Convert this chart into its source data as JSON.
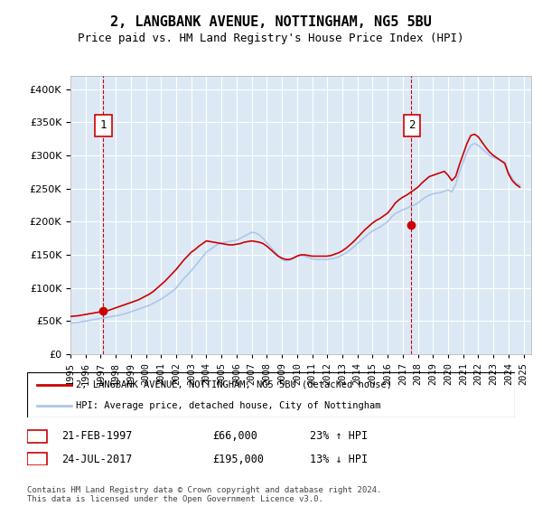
{
  "title": "2, LANGBANK AVENUE, NOTTINGHAM, NG5 5BU",
  "subtitle": "Price paid vs. HM Land Registry's House Price Index (HPI)",
  "legend_line1": "2, LANGBANK AVENUE, NOTTINGHAM, NG5 5BU (detached house)",
  "legend_line2": "HPI: Average price, detached house, City of Nottingham",
  "sale1_label": "1",
  "sale1_date": "21-FEB-1997",
  "sale1_price": "£66,000",
  "sale1_hpi": "23% ↑ HPI",
  "sale1_year": 1997.13,
  "sale1_value": 66000,
  "sale2_label": "2",
  "sale2_date": "24-JUL-2017",
  "sale2_price": "£195,000",
  "sale2_hpi": "13% ↓ HPI",
  "sale2_year": 2017.56,
  "sale2_value": 195000,
  "hpi_color": "#aec6e8",
  "price_color": "#cc0000",
  "background_color": "#dce9f5",
  "plot_bg_color": "#dce9f5",
  "grid_color": "#ffffff",
  "annotation_box_color": "#cc0000",
  "ylabel_format": "£{0}K",
  "ylim": [
    0,
    420000
  ],
  "yticks": [
    0,
    50000,
    100000,
    150000,
    200000,
    250000,
    300000,
    350000,
    400000
  ],
  "xmin": 1995,
  "xmax": 2025.5,
  "footnote": "Contains HM Land Registry data © Crown copyright and database right 2024.\nThis data is licensed under the Open Government Licence v3.0.",
  "hpi_years": [
    1995,
    1995.25,
    1995.5,
    1995.75,
    1996,
    1996.25,
    1996.5,
    1996.75,
    1997,
    1997.25,
    1997.5,
    1997.75,
    1998,
    1998.25,
    1998.5,
    1998.75,
    1999,
    1999.25,
    1999.5,
    1999.75,
    2000,
    2000.25,
    2000.5,
    2000.75,
    2001,
    2001.25,
    2001.5,
    2001.75,
    2002,
    2002.25,
    2002.5,
    2002.75,
    2003,
    2003.25,
    2003.5,
    2003.75,
    2004,
    2004.25,
    2004.5,
    2004.75,
    2005,
    2005.25,
    2005.5,
    2005.75,
    2006,
    2006.25,
    2006.5,
    2006.75,
    2007,
    2007.25,
    2007.5,
    2007.75,
    2008,
    2008.25,
    2008.5,
    2008.75,
    2009,
    2009.25,
    2009.5,
    2009.75,
    2010,
    2010.25,
    2010.5,
    2010.75,
    2011,
    2011.25,
    2011.5,
    2011.75,
    2012,
    2012.25,
    2012.5,
    2012.75,
    2013,
    2013.25,
    2013.5,
    2013.75,
    2014,
    2014.25,
    2014.5,
    2014.75,
    2015,
    2015.25,
    2015.5,
    2015.75,
    2016,
    2016.25,
    2016.5,
    2016.75,
    2017,
    2017.25,
    2017.5,
    2017.75,
    2018,
    2018.25,
    2018.5,
    2018.75,
    2019,
    2019.25,
    2019.5,
    2019.75,
    2020,
    2020.25,
    2020.5,
    2020.75,
    2021,
    2021.25,
    2021.5,
    2021.75,
    2022,
    2022.25,
    2022.5,
    2022.75,
    2023,
    2023.25,
    2023.5,
    2023.75,
    2024,
    2024.25,
    2024.5,
    2024.75
  ],
  "hpi_values": [
    47000,
    47500,
    48000,
    49000,
    50000,
    51000,
    52000,
    53000,
    54000,
    55000,
    56000,
    57000,
    58000,
    59000,
    60500,
    62000,
    64000,
    66000,
    68000,
    70000,
    72000,
    74000,
    77000,
    80000,
    83000,
    87000,
    91000,
    95000,
    100000,
    107000,
    114000,
    120000,
    126000,
    133000,
    140000,
    147000,
    154000,
    158000,
    162000,
    166000,
    168000,
    169000,
    170000,
    171000,
    172000,
    175000,
    178000,
    181000,
    184000,
    183000,
    180000,
    175000,
    168000,
    162000,
    155000,
    148000,
    143000,
    141000,
    142000,
    145000,
    148000,
    149000,
    148000,
    146000,
    144000,
    143000,
    143000,
    143000,
    143000,
    144000,
    145000,
    147000,
    150000,
    153000,
    157000,
    162000,
    167000,
    172000,
    177000,
    182000,
    186000,
    189000,
    192000,
    196000,
    200000,
    207000,
    212000,
    215000,
    218000,
    220000,
    223000,
    225000,
    228000,
    233000,
    237000,
    240000,
    242000,
    243000,
    244000,
    246000,
    248000,
    245000,
    256000,
    275000,
    290000,
    305000,
    315000,
    318000,
    315000,
    310000,
    305000,
    300000,
    297000,
    295000,
    292000,
    290000,
    275000,
    265000,
    258000,
    255000
  ],
  "price_years": [
    1995,
    1995.25,
    1995.5,
    1995.75,
    1996,
    1996.25,
    1996.5,
    1996.75,
    1997,
    1997.25,
    1997.5,
    1997.75,
    1998,
    1998.25,
    1998.5,
    1998.75,
    1999,
    1999.25,
    1999.5,
    1999.75,
    2000,
    2000.25,
    2000.5,
    2000.75,
    2001,
    2001.25,
    2001.5,
    2001.75,
    2002,
    2002.25,
    2002.5,
    2002.75,
    2003,
    2003.25,
    2003.5,
    2003.75,
    2004,
    2004.25,
    2004.5,
    2004.75,
    2005,
    2005.25,
    2005.5,
    2005.75,
    2006,
    2006.25,
    2006.5,
    2006.75,
    2007,
    2007.25,
    2007.5,
    2007.75,
    2008,
    2008.25,
    2008.5,
    2008.75,
    2009,
    2009.25,
    2009.5,
    2009.75,
    2010,
    2010.25,
    2010.5,
    2010.75,
    2011,
    2011.25,
    2011.5,
    2011.75,
    2012,
    2012.25,
    2012.5,
    2012.75,
    2013,
    2013.25,
    2013.5,
    2013.75,
    2014,
    2014.25,
    2014.5,
    2014.75,
    2015,
    2015.25,
    2015.5,
    2015.75,
    2016,
    2016.25,
    2016.5,
    2016.75,
    2017,
    2017.25,
    2017.5,
    2017.75,
    2018,
    2018.25,
    2018.5,
    2018.75,
    2019,
    2019.25,
    2019.5,
    2019.75,
    2020,
    2020.25,
    2020.5,
    2020.75,
    2021,
    2021.25,
    2021.5,
    2021.75,
    2022,
    2022.25,
    2022.5,
    2022.75,
    2023,
    2023.25,
    2023.5,
    2023.75,
    2024,
    2024.25,
    2024.5,
    2024.75
  ],
  "price_values": [
    57000,
    57500,
    58000,
    59000,
    60000,
    61000,
    62000,
    63000,
    64000,
    65000,
    66000,
    68000,
    70000,
    72000,
    74000,
    76000,
    78000,
    80000,
    82000,
    85000,
    88000,
    91000,
    95000,
    100000,
    105000,
    110000,
    116000,
    122000,
    128000,
    135000,
    142000,
    148000,
    154000,
    158000,
    163000,
    167000,
    171000,
    170000,
    169000,
    168000,
    167000,
    166000,
    165000,
    165000,
    166000,
    167000,
    169000,
    170000,
    171000,
    170000,
    169000,
    167000,
    163000,
    158000,
    153000,
    148000,
    145000,
    143000,
    143000,
    145000,
    148000,
    150000,
    150000,
    149000,
    148000,
    148000,
    148000,
    148000,
    148000,
    149000,
    151000,
    153000,
    156000,
    160000,
    165000,
    170000,
    176000,
    182000,
    188000,
    193000,
    198000,
    202000,
    205000,
    209000,
    213000,
    220000,
    228000,
    233000,
    237000,
    240000,
    244000,
    248000,
    252000,
    258000,
    263000,
    268000,
    270000,
    272000,
    274000,
    276000,
    270000,
    262000,
    268000,
    286000,
    302000,
    318000,
    330000,
    332000,
    328000,
    320000,
    312000,
    305000,
    300000,
    296000,
    292000,
    288000,
    272000,
    262000,
    256000,
    252000
  ]
}
